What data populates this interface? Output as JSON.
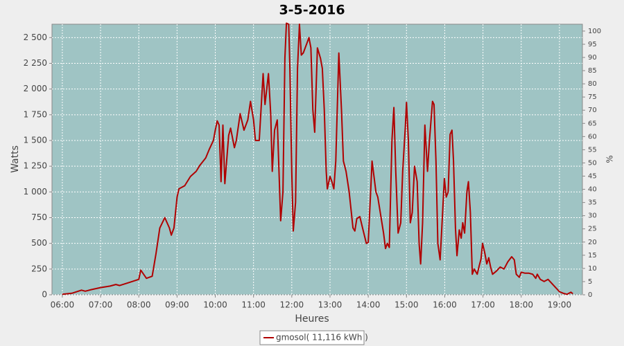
{
  "chart_data": {
    "type": "line",
    "title": "3-5-2016",
    "x_label": "Heures",
    "y_label": "Watts",
    "y2_label": "%",
    "xlim": [
      5.73,
      19.6
    ],
    "ylim": [
      0,
      2630
    ],
    "y2lim": [
      0,
      102.6
    ],
    "xticks": [
      {
        "value": 6,
        "label": "06:00"
      },
      {
        "value": 7,
        "label": "07:00"
      },
      {
        "value": 8,
        "label": "08:00"
      },
      {
        "value": 9,
        "label": "09:00"
      },
      {
        "value": 10,
        "label": "10:00"
      },
      {
        "value": 11,
        "label": "11:00"
      },
      {
        "value": 12,
        "label": "12:00"
      },
      {
        "value": 13,
        "label": "13:00"
      },
      {
        "value": 14,
        "label": "14:00"
      },
      {
        "value": 15,
        "label": "15:00"
      },
      {
        "value": 16,
        "label": "16:00"
      },
      {
        "value": 17,
        "label": "17:00"
      },
      {
        "value": 18,
        "label": "18:00"
      },
      {
        "value": 19,
        "label": "19:00"
      }
    ],
    "yticks": [
      0,
      250,
      500,
      750,
      {
        "value": 1000,
        "label": "1 000"
      },
      {
        "value": 1250,
        "label": "1 250"
      },
      {
        "value": 1500,
        "label": "1 500"
      },
      {
        "value": 1750,
        "label": "1 750"
      },
      {
        "value": 2000,
        "label": "2 000"
      },
      {
        "value": 2250,
        "label": "2 250"
      },
      {
        "value": 2500,
        "label": "2 500"
      }
    ],
    "y2ticks": [
      0,
      5,
      10,
      15,
      20,
      25,
      30,
      35,
      40,
      45,
      50,
      55,
      60,
      65,
      70,
      75,
      80,
      85,
      90,
      95,
      100
    ],
    "grid": true,
    "legend": "bottom",
    "x": [
      6.0,
      6.25,
      6.5,
      6.6,
      6.75,
      7.0,
      7.25,
      7.4,
      7.5,
      7.75,
      8.0,
      8.05,
      8.2,
      8.35,
      8.45,
      8.55,
      8.68,
      8.8,
      8.85,
      8.92,
      9.0,
      9.05,
      9.2,
      9.35,
      9.5,
      9.6,
      9.75,
      9.85,
      9.95,
      10.0,
      10.05,
      10.1,
      10.15,
      10.2,
      10.25,
      10.35,
      10.4,
      10.5,
      10.55,
      10.65,
      10.75,
      10.85,
      10.92,
      11.0,
      11.05,
      11.15,
      11.25,
      11.3,
      11.39,
      11.45,
      11.49,
      11.55,
      11.62,
      11.71,
      11.77,
      11.82,
      11.86,
      11.92,
      11.95,
      12.0,
      12.04,
      12.1,
      12.15,
      12.2,
      12.25,
      12.3,
      12.4,
      12.45,
      12.5,
      12.55,
      12.6,
      12.67,
      12.75,
      12.8,
      12.85,
      12.9,
      12.93,
      13.0,
      13.05,
      13.1,
      13.15,
      13.23,
      13.3,
      13.35,
      13.42,
      13.5,
      13.6,
      13.65,
      13.7,
      13.78,
      13.85,
      13.95,
      14.0,
      14.05,
      14.1,
      14.15,
      14.2,
      14.25,
      14.4,
      14.45,
      14.5,
      14.55,
      14.62,
      14.67,
      14.72,
      14.78,
      14.85,
      14.9,
      14.97,
      15.0,
      15.05,
      15.1,
      15.15,
      15.21,
      15.28,
      15.33,
      15.37,
      15.42,
      15.48,
      15.55,
      15.6,
      15.68,
      15.72,
      15.77,
      15.82,
      15.88,
      15.93,
      15.99,
      16.04,
      16.09,
      16.14,
      16.19,
      16.23,
      16.28,
      16.32,
      16.38,
      16.43,
      16.47,
      16.52,
      16.58,
      16.62,
      16.67,
      16.72,
      16.77,
      16.85,
      16.9,
      16.95,
      16.99,
      17.05,
      17.1,
      17.15,
      17.2,
      17.25,
      17.35,
      17.45,
      17.55,
      17.65,
      17.75,
      17.82,
      17.87,
      17.95,
      18.0,
      18.1,
      18.2,
      18.3,
      18.38,
      18.42,
      18.5,
      18.6,
      18.7,
      18.8,
      18.9,
      19.0,
      19.1,
      19.2,
      19.3,
      19.35
    ],
    "series": [
      {
        "name": "gmosol( 11,116 kWh )",
        "color": "#b00000",
        "values": [
          5,
          15,
          45,
          35,
          50,
          70,
          85,
          100,
          90,
          120,
          150,
          240,
          160,
          180,
          400,
          650,
          750,
          650,
          580,
          650,
          950,
          1030,
          1060,
          1150,
          1200,
          1260,
          1330,
          1420,
          1500,
          1600,
          1690,
          1650,
          1100,
          1650,
          1080,
          1550,
          1620,
          1430,
          1500,
          1760,
          1600,
          1700,
          1880,
          1700,
          1500,
          1500,
          2150,
          1850,
          2150,
          1750,
          1200,
          1600,
          1700,
          720,
          1000,
          2300,
          2640,
          2630,
          2200,
          1200,
          620,
          900,
          2200,
          2630,
          2330,
          2350,
          2450,
          2500,
          2400,
          1800,
          1580,
          2400,
          2300,
          2200,
          1800,
          1200,
          1030,
          1150,
          1100,
          1030,
          1300,
          2350,
          1800,
          1300,
          1200,
          1000,
          650,
          620,
          740,
          760,
          650,
          500,
          510,
          900,
          1300,
          1150,
          1000,
          950,
          600,
          450,
          500,
          460,
          1500,
          1820,
          1200,
          600,
          700,
          1200,
          1630,
          1870,
          1500,
          700,
          800,
          1250,
          1100,
          500,
          300,
          700,
          1650,
          1200,
          1500,
          1880,
          1850,
          1300,
          500,
          340,
          700,
          1130,
          950,
          1000,
          1560,
          1600,
          1300,
          650,
          380,
          630,
          550,
          700,
          600,
          1000,
          1100,
          800,
          200,
          250,
          200,
          280,
          350,
          500,
          400,
          300,
          360,
          270,
          200,
          230,
          270,
          250,
          320,
          370,
          340,
          200,
          170,
          220,
          210,
          210,
          200,
          160,
          200,
          150,
          130,
          150,
          110,
          70,
          30,
          15,
          5,
          25,
          10
        ]
      }
    ]
  }
}
